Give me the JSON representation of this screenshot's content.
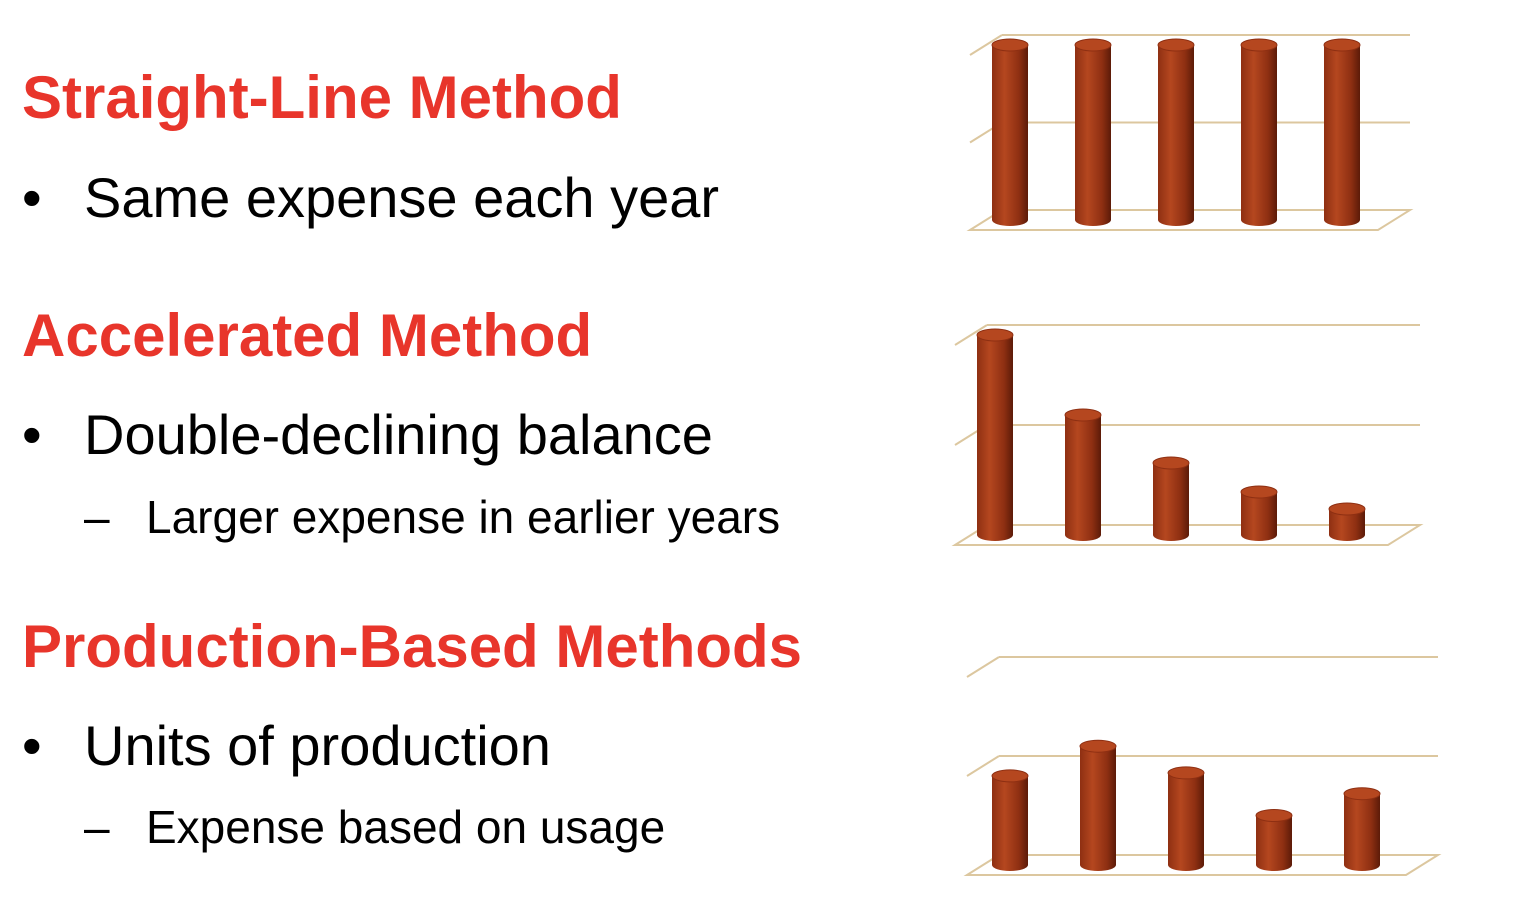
{
  "colors": {
    "heading": "#e8352b",
    "bar_light": "#b5471f",
    "bar_mid": "#8e2f12",
    "bar_dark": "#5c1b08",
    "gridline": "#dcc79f"
  },
  "sections": [
    {
      "heading": "Straight-Line Method",
      "bullet": "Same expense each year",
      "sub": ""
    },
    {
      "heading": "Accelerated Method",
      "bullet": "Double-declining balance",
      "sub": "Larger expense in earlier years"
    },
    {
      "heading": "Production-Based Methods",
      "bullet": "Units of production",
      "sub": "Expense based on usage"
    }
  ],
  "bullet_mark": "•",
  "sub_mark": "–",
  "chart_data": [
    {
      "type": "bar",
      "style": "3d-cylinder",
      "values": [
        2,
        2,
        2,
        2,
        2
      ],
      "ylim": [
        0,
        2
      ],
      "grid": true,
      "legend": "none"
    },
    {
      "type": "bar",
      "style": "3d-cylinder",
      "values": [
        2.0,
        1.2,
        0.72,
        0.43,
        0.26
      ],
      "ylim": [
        0,
        2
      ],
      "grid": true,
      "legend": "none"
    },
    {
      "type": "bar",
      "style": "3d-cylinder",
      "values": [
        0.9,
        1.2,
        0.93,
        0.5,
        0.72
      ],
      "ylim": [
        0,
        2
      ],
      "grid": true,
      "legend": "none"
    }
  ]
}
